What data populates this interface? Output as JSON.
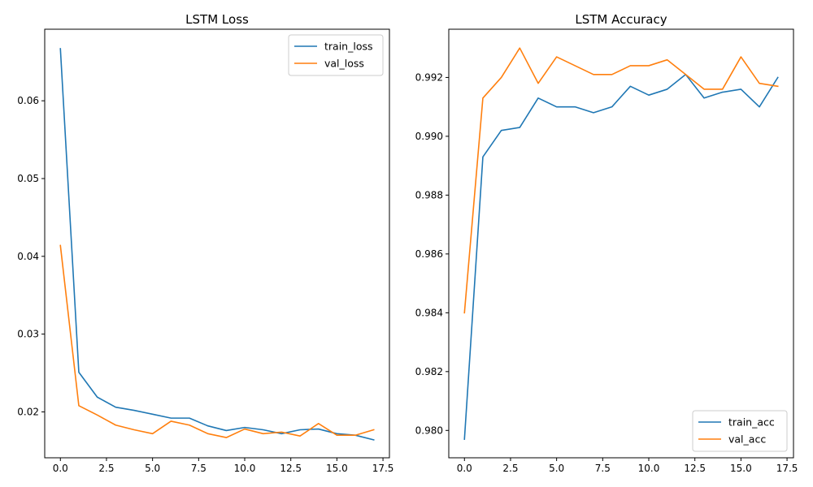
{
  "chart_data": [
    {
      "type": "line",
      "title": "LSTM Loss",
      "xlabel": "",
      "ylabel": "",
      "xlim": [
        -0.85,
        17.85
      ],
      "ylim": [
        0.0141,
        0.0692
      ],
      "x_ticks": [
        0,
        2.5,
        5,
        7.5,
        10,
        12.5,
        15,
        17.5
      ],
      "x_tick_labels": [
        "0.0",
        "2.5",
        "5.0",
        "7.5",
        "10.0",
        "12.5",
        "15.0",
        "17.5"
      ],
      "y_ticks": [
        0.02,
        0.03,
        0.04,
        0.05,
        0.06
      ],
      "y_tick_labels": [
        "0.02",
        "0.03",
        "0.04",
        "0.05",
        "0.06"
      ],
      "legend_position": "top-right",
      "x": [
        0,
        1,
        2,
        3,
        4,
        5,
        6,
        7,
        8,
        9,
        10,
        11,
        12,
        13,
        14,
        15,
        16,
        17
      ],
      "series": [
        {
          "name": "train_loss",
          "color": "#1f77b4",
          "values": [
            0.0667,
            0.0251,
            0.0219,
            0.0206,
            0.0202,
            0.0197,
            0.0192,
            0.0192,
            0.0182,
            0.0176,
            0.018,
            0.0177,
            0.0172,
            0.0177,
            0.0178,
            0.0172,
            0.017,
            0.0164
          ]
        },
        {
          "name": "val_loss",
          "color": "#ff7f0e",
          "values": [
            0.0414,
            0.0208,
            0.0196,
            0.0183,
            0.0177,
            0.0172,
            0.0188,
            0.0183,
            0.0172,
            0.0167,
            0.0178,
            0.0172,
            0.0174,
            0.0169,
            0.0185,
            0.017,
            0.017,
            0.0177
          ]
        }
      ]
    },
    {
      "type": "line",
      "title": "LSTM Accuracy",
      "xlabel": "",
      "ylabel": "",
      "xlim": [
        -0.85,
        17.85
      ],
      "ylim": [
        0.97907,
        0.99364
      ],
      "x_ticks": [
        0,
        2.5,
        5,
        7.5,
        10,
        12.5,
        15,
        17.5
      ],
      "x_tick_labels": [
        "0.0",
        "2.5",
        "5.0",
        "7.5",
        "10.0",
        "12.5",
        "15.0",
        "17.5"
      ],
      "y_ticks": [
        0.98,
        0.982,
        0.984,
        0.986,
        0.988,
        0.99,
        0.992
      ],
      "y_tick_labels": [
        "0.980",
        "0.982",
        "0.984",
        "0.986",
        "0.988",
        "0.990",
        "0.992"
      ],
      "legend_position": "bottom-right",
      "x": [
        0,
        1,
        2,
        3,
        4,
        5,
        6,
        7,
        8,
        9,
        10,
        11,
        12,
        13,
        14,
        15,
        16,
        17
      ],
      "series": [
        {
          "name": "train_acc",
          "color": "#1f77b4",
          "values": [
            0.9797,
            0.9893,
            0.9902,
            0.9903,
            0.9913,
            0.991,
            0.991,
            0.9908,
            0.991,
            0.9917,
            0.9914,
            0.9916,
            0.9921,
            0.9913,
            0.9915,
            0.9916,
            0.991,
            0.992
          ]
        },
        {
          "name": "val_acc",
          "color": "#ff7f0e",
          "values": [
            0.984,
            0.9913,
            0.992,
            0.993,
            0.9918,
            0.9927,
            0.9924,
            0.9921,
            0.9921,
            0.9924,
            0.9924,
            0.9926,
            0.9921,
            0.9916,
            0.9916,
            0.9927,
            0.9918,
            0.9917
          ]
        }
      ]
    }
  ]
}
